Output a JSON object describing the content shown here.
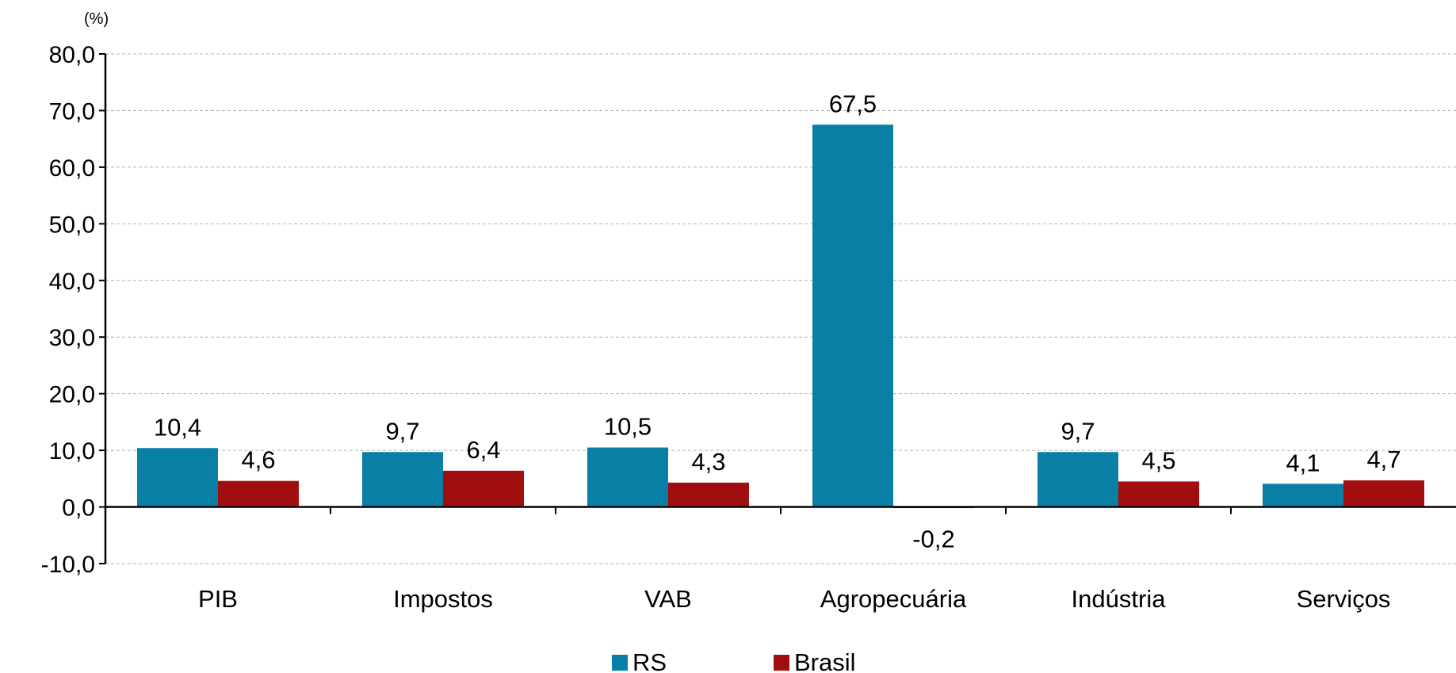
{
  "chart_data": {
    "type": "bar",
    "unit_label": "(%)",
    "categories": [
      "PIB",
      "Impostos",
      "VAB",
      "Agropecuária",
      "Indústria",
      "Serviços"
    ],
    "series": [
      {
        "name": "RS",
        "color": "#0a7fa5",
        "values": [
          10.4,
          9.7,
          10.5,
          67.5,
          9.7,
          4.1
        ],
        "labels": [
          "10,4",
          "9,7",
          "10,5",
          "67,5",
          "9,7",
          "4,1"
        ]
      },
      {
        "name": "Brasil",
        "color": "#a10e10",
        "values": [
          4.6,
          6.4,
          4.3,
          -0.2,
          4.5,
          4.7
        ],
        "labels": [
          "4,6",
          "6,4",
          "4,3",
          "-0,2",
          "4,5",
          "4,7"
        ]
      }
    ],
    "ylim": [
      -10,
      80
    ],
    "yticks": [
      -10,
      0,
      10,
      20,
      30,
      40,
      50,
      60,
      70,
      80
    ],
    "ytick_labels": [
      "-10,0",
      "0,0",
      "10,0",
      "20,0",
      "30,0",
      "40,0",
      "50,0",
      "60,0",
      "70,0",
      "80,0"
    ],
    "grid": true,
    "legend_position": "bottom",
    "title": "",
    "xlabel": "",
    "ylabel": ""
  }
}
